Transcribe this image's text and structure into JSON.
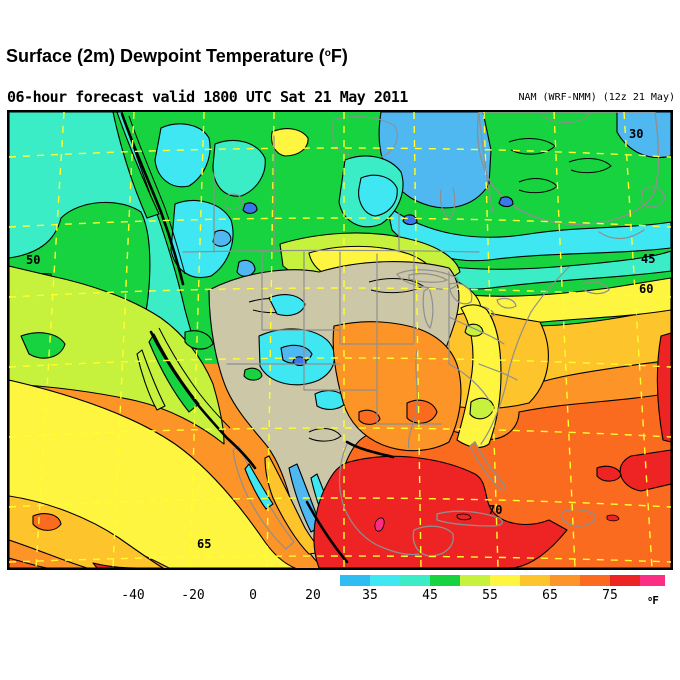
{
  "header": {
    "title_prefix": "Surface (2m) Dewpoint Temperature (",
    "title_degree": "o",
    "title_suffix": "F)"
  },
  "forecast_bar": {
    "text": "06-hour forecast valid 1800 UTC Sat 21 May 2011",
    "model": "NAM (WRF-NMM) (12z 21 May)"
  },
  "map": {
    "contour_labels": [
      "50",
      "30",
      "45",
      "60",
      "65",
      "70"
    ]
  },
  "colorbar": {
    "ticks": [
      "-40",
      "-20",
      "0",
      "20",
      "35",
      "45",
      "55",
      "65",
      "75"
    ],
    "segment_colors": [
      "#2fbdf1",
      "#3ee7f2",
      "#3bedc6",
      "#17d33f",
      "#c6f23e",
      "#fdf53f",
      "#fec42c",
      "#fd9427",
      "#fa6b1f",
      "#ee2424",
      "#fb2d85"
    ],
    "unit_degree": "o",
    "unit_letter": "F"
  },
  "palette": {
    "sky_blue_30_35": "#4fb8f0",
    "cyan_35_40": "#3ee7f2",
    "turquoise_40_45": "#3bedc6",
    "green_45_50": "#17d33f",
    "chartreuse_50_55": "#c6f23e",
    "yellow_55_60": "#fdf53f",
    "amber_60_65": "#fec42c",
    "orange_65_70": "#fd9427",
    "dark_orange_70_75": "#fa6b1f",
    "red_75_80": "#ee2424",
    "pink_80_plus": "#fb2d85",
    "dry_land_tan": "#cbc7a7",
    "low_dp_blue": "#3a78e8",
    "border_gray": "#8f8f8f",
    "graticule_yellow": "#ffff2e",
    "contour_black": "#000000"
  }
}
